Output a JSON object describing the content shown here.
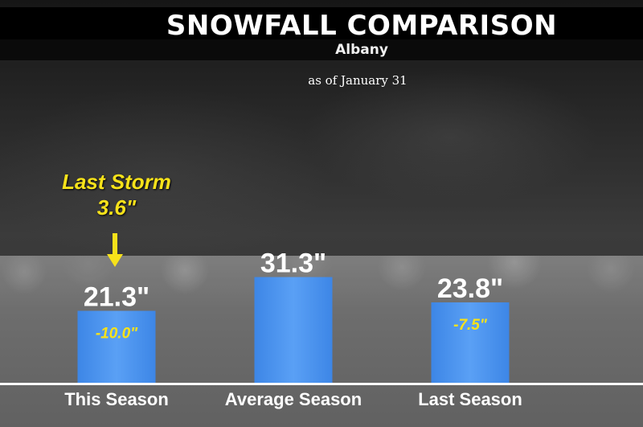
{
  "chart_data": {
    "type": "bar",
    "title": "SNOWFALL COMPARISON",
    "subtitle": "Albany",
    "note": "as of January 31",
    "categories": [
      "This Season",
      "Average Season",
      "Last Season"
    ],
    "series": [
      {
        "values": [
          21.3,
          31.3,
          23.8
        ],
        "value_labels": [
          "21.3\"",
          "31.3\"",
          "23.8\""
        ],
        "difference_labels": [
          "-10.0\"",
          "",
          "-7.5\""
        ]
      }
    ],
    "annotation": {
      "lines": [
        "Last Storm",
        "3.6\""
      ],
      "category": "This Season"
    },
    "colors": {
      "bar": "#3d86e6",
      "bar_highlight": "#5aa0f5",
      "accent_text": "#f7e21a",
      "baseline": "#ffffff"
    }
  }
}
